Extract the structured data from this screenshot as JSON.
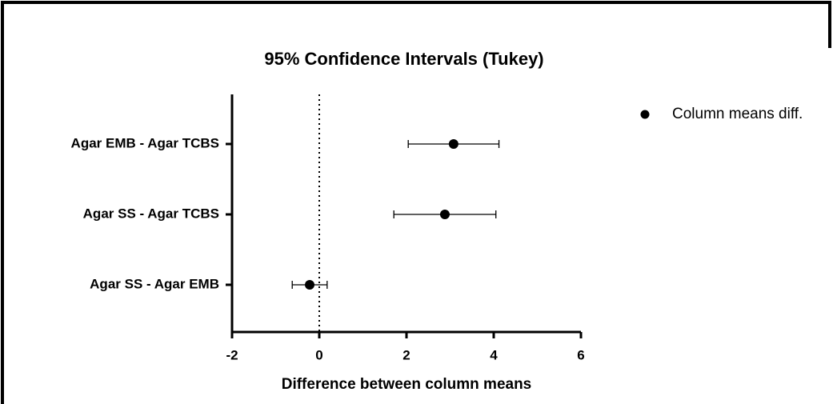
{
  "chart_data": {
    "type": "forest",
    "title": "95% Confidence Intervals (Tukey)",
    "x_label": "Difference between column means",
    "categories": [
      "Agar EMB - Agar TCBS",
      "Agar SS - Agar TCBS",
      "Agar SS - Agar EMB"
    ],
    "series": [
      {
        "name": "Column means diff.",
        "color": "#000000",
        "values": [
          3.08,
          2.88,
          -0.22
        ],
        "errors": [
          1.04,
          1.17,
          0.4
        ]
      }
    ],
    "xlim": [
      -2,
      6
    ],
    "xticks": [
      -2,
      0,
      2,
      4,
      6
    ],
    "reference_line": 0,
    "legend": "top-right"
  }
}
